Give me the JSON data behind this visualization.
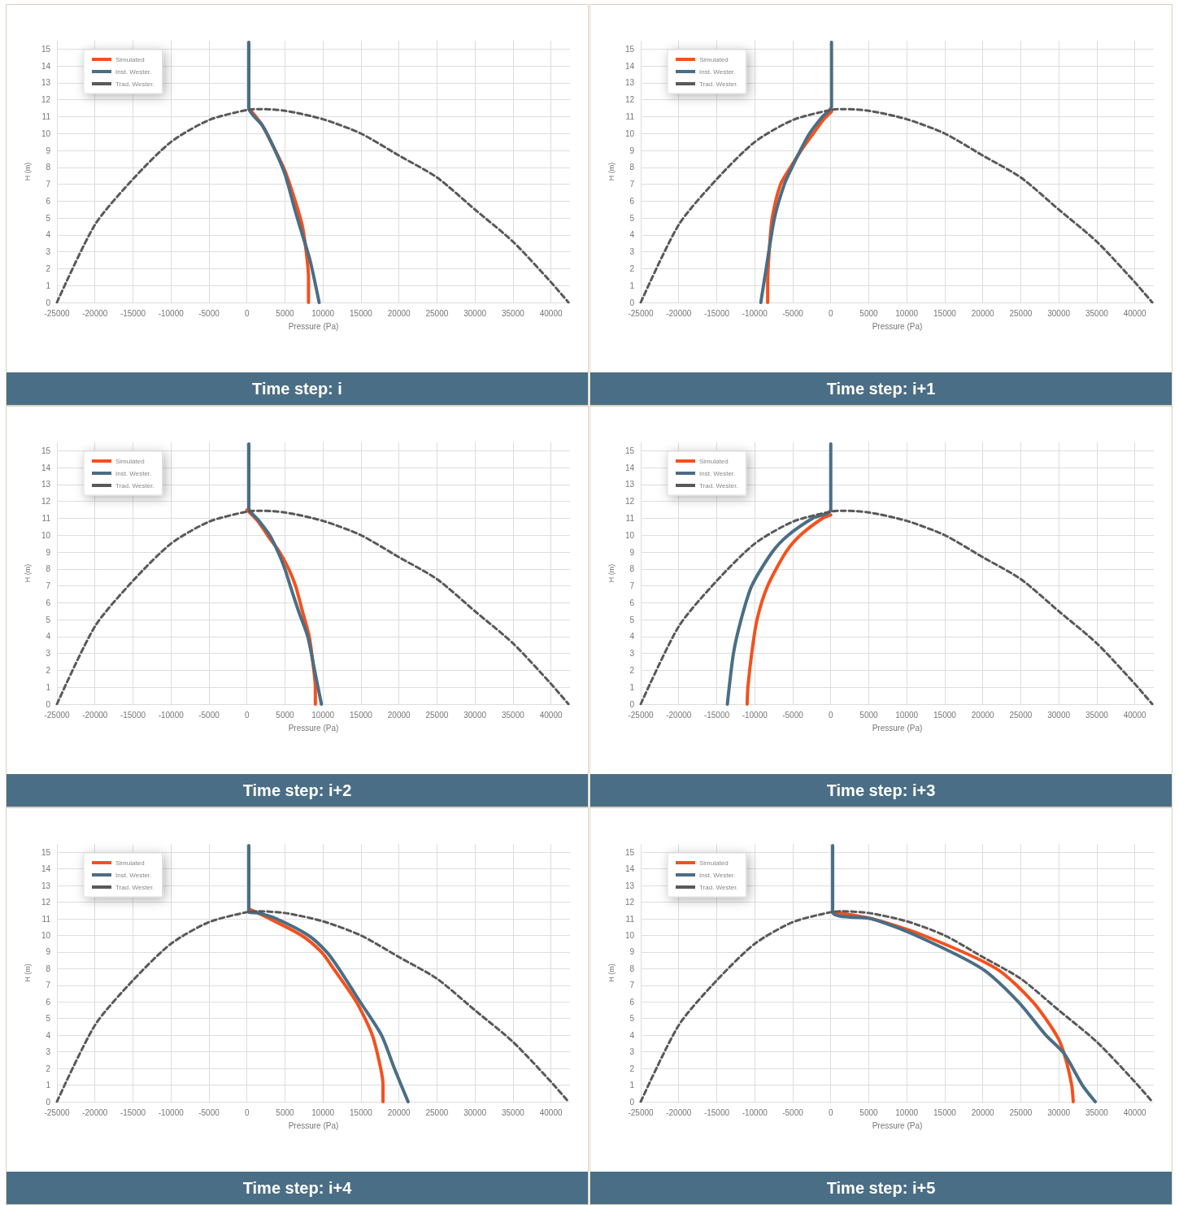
{
  "chart_data": [
    {
      "type": "line",
      "title": "Time step: i",
      "xlabel": "Pressure (Pa)",
      "ylabel": "H (m)",
      "xlim": [
        -25000,
        42500
      ],
      "ylim": [
        0,
        15.5
      ],
      "xticks": [
        -25000,
        -20000,
        -15000,
        -10000,
        -5000,
        0,
        5000,
        10000,
        15000,
        20000,
        25000,
        30000,
        35000,
        40000
      ],
      "yticks": [
        0,
        1,
        2,
        3,
        4,
        5,
        6,
        7,
        8,
        9,
        10,
        11,
        12,
        13,
        14,
        15
      ],
      "grid": true,
      "legend": "top left",
      "marker": "none",
      "line_style": "solid",
      "series": [
        {
          "name": "Simulated",
          "color": "#f4511e",
          "x": [
            250,
            2000,
            3500,
            5000,
            6500,
            7300,
            7800,
            8100,
            8100
          ],
          "values": [
            11.5,
            10.5,
            9.2,
            7.8,
            5.8,
            4.5,
            3,
            1.5,
            0
          ]
        },
        {
          "name": "Inst. Wester.",
          "color": "#4a6e85",
          "x": [
            250,
            250,
            2000,
            3500,
            5000,
            6300,
            7300,
            8300,
            9500
          ],
          "values": [
            15.4,
            11.5,
            10.5,
            9.2,
            7.6,
            5.5,
            4,
            2.5,
            0
          ]
        },
        {
          "name": "Trad. Wester.",
          "color": "#595959",
          "line_style": "dashed",
          "x": [
            -25000,
            -20000,
            -15000,
            -10000,
            -5000,
            0,
            1500,
            5000,
            10000,
            15000,
            20000,
            25000,
            30000,
            35000,
            40000,
            42300
          ],
          "values": [
            0,
            4.6,
            7.3,
            9.5,
            10.8,
            11.4,
            11.45,
            11.35,
            10.85,
            10,
            8.7,
            7.4,
            5.5,
            3.6,
            1.2,
            0
          ]
        }
      ]
    },
    {
      "type": "line",
      "title": "Time step: i+1",
      "xlabel": "Pressure (Pa)",
      "ylabel": "H (m)",
      "xlim": [
        -25000,
        42500
      ],
      "ylim": [
        0,
        15.5
      ],
      "xticks": [
        -25000,
        -20000,
        -15000,
        -10000,
        -5000,
        0,
        5000,
        10000,
        15000,
        20000,
        25000,
        30000,
        35000,
        40000
      ],
      "yticks": [
        0,
        1,
        2,
        3,
        4,
        5,
        6,
        7,
        8,
        9,
        10,
        11,
        12,
        13,
        14,
        15
      ],
      "grid": true,
      "legend": "top left",
      "marker": "none",
      "line_style": "solid",
      "series": [
        {
          "name": "Simulated",
          "color": "#f4511e",
          "x": [
            100,
            -1000,
            -2300,
            -3900,
            -5300,
            -6600,
            -7700,
            -8100,
            -8300,
            -8300
          ],
          "values": [
            11.3,
            10.8,
            10,
            9,
            8,
            7,
            5,
            3,
            1,
            0
          ]
        },
        {
          "name": "Inst. Wester.",
          "color": "#4a6e85",
          "x": [
            100,
            100,
            -1100,
            -2800,
            -4000,
            -5100,
            -6100,
            -7400,
            -8500,
            -9200
          ],
          "values": [
            15.4,
            11.6,
            11,
            10,
            9,
            8,
            7,
            5,
            2,
            0
          ]
        },
        {
          "name": "Trad. Wester.",
          "color": "#595959",
          "line_style": "dashed",
          "x": [
            -25000,
            -20000,
            -15000,
            -10000,
            -5000,
            0,
            1500,
            5000,
            10000,
            15000,
            20000,
            25000,
            30000,
            35000,
            40000,
            42300
          ],
          "values": [
            0,
            4.6,
            7.3,
            9.5,
            10.8,
            11.4,
            11.45,
            11.35,
            10.85,
            10,
            8.7,
            7.4,
            5.5,
            3.6,
            1.2,
            0
          ]
        }
      ]
    },
    {
      "type": "line",
      "title": "Time step: i+2",
      "xlabel": "Pressure (Pa)",
      "ylabel": "H (m)",
      "xlim": [
        -25000,
        42500
      ],
      "ylim": [
        0,
        15.5
      ],
      "xticks": [
        -25000,
        -20000,
        -15000,
        -10000,
        -5000,
        0,
        5000,
        10000,
        15000,
        20000,
        25000,
        30000,
        35000,
        40000
      ],
      "yticks": [
        0,
        1,
        2,
        3,
        4,
        5,
        6,
        7,
        8,
        9,
        10,
        11,
        12,
        13,
        14,
        15
      ],
      "grid": true,
      "legend": "top left",
      "marker": "none",
      "line_style": "solid",
      "series": [
        {
          "name": "Simulated",
          "color": "#f4511e",
          "x": [
            0,
            1500,
            2700,
            4300,
            5500,
            6400,
            7300,
            8200,
            8800,
            9000,
            9000
          ],
          "values": [
            11.5,
            10.8,
            10,
            9,
            8,
            7,
            5.5,
            4,
            2,
            1,
            0
          ]
        },
        {
          "name": "Inst. Wester.",
          "color": "#4a6e85",
          "x": [
            250,
            250,
            1500,
            3000,
            4100,
            5000,
            5700,
            6800,
            8000,
            8900,
            9800
          ],
          "values": [
            15.4,
            11.6,
            10.9,
            10,
            9,
            8,
            7,
            5.5,
            4,
            2,
            0
          ]
        },
        {
          "name": "Trad. Wester.",
          "color": "#595959",
          "line_style": "dashed",
          "x": [
            -25000,
            -20000,
            -15000,
            -10000,
            -5000,
            0,
            1500,
            5000,
            10000,
            15000,
            20000,
            25000,
            30000,
            35000,
            40000,
            42300
          ],
          "values": [
            0,
            4.6,
            7.3,
            9.5,
            10.8,
            11.4,
            11.45,
            11.35,
            10.85,
            10,
            8.7,
            7.4,
            5.5,
            3.6,
            1.2,
            0
          ]
        }
      ]
    },
    {
      "type": "line",
      "title": "Time step: i+3",
      "xlabel": "Pressure (Pa)",
      "ylabel": "H (m)",
      "xlim": [
        -25000,
        42500
      ],
      "ylim": [
        0,
        15.5
      ],
      "xticks": [
        -25000,
        -20000,
        -15000,
        -10000,
        -5000,
        0,
        5000,
        10000,
        15000,
        20000,
        25000,
        30000,
        35000,
        40000
      ],
      "yticks": [
        0,
        1,
        2,
        3,
        4,
        5,
        6,
        7,
        8,
        9,
        10,
        11,
        12,
        13,
        14,
        15
      ],
      "grid": true,
      "legend": "top left",
      "marker": "none",
      "line_style": "solid",
      "series": [
        {
          "name": "Simulated",
          "color": "#f4511e",
          "x": [
            0,
            -1100,
            -4000,
            -5900,
            -8300,
            -9700,
            -10400,
            -10900,
            -11000
          ],
          "values": [
            11.2,
            11,
            10,
            9,
            7,
            5,
            3,
            1,
            0
          ]
        },
        {
          "name": "Inst. Wester.",
          "color": "#4a6e85",
          "x": [
            0,
            0,
            -2400,
            -5600,
            -7700,
            -10400,
            -11800,
            -12800,
            -13600
          ],
          "values": [
            15.4,
            11.5,
            11,
            10,
            9,
            7,
            5,
            3,
            0
          ]
        },
        {
          "name": "Trad. Wester.",
          "color": "#595959",
          "line_style": "dashed",
          "x": [
            -25000,
            -20000,
            -15000,
            -10000,
            -5000,
            0,
            1500,
            5000,
            10000,
            15000,
            20000,
            25000,
            30000,
            35000,
            40000,
            42300
          ],
          "values": [
            0,
            4.6,
            7.3,
            9.5,
            10.8,
            11.4,
            11.45,
            11.35,
            10.85,
            10,
            8.7,
            7.4,
            5.5,
            3.6,
            1.2,
            0
          ]
        }
      ]
    },
    {
      "type": "line",
      "title": "Time step: i+4",
      "xlabel": "Pressure (Pa)",
      "ylabel": "H (m)",
      "xlim": [
        -25000,
        42500
      ],
      "ylim": [
        0,
        15.5
      ],
      "xticks": [
        -25000,
        -20000,
        -15000,
        -10000,
        -5000,
        0,
        5000,
        10000,
        15000,
        20000,
        25000,
        30000,
        35000,
        40000
      ],
      "yticks": [
        0,
        1,
        2,
        3,
        4,
        5,
        6,
        7,
        8,
        9,
        10,
        11,
        12,
        13,
        14,
        15
      ],
      "grid": true,
      "legend": "top left",
      "marker": "none",
      "line_style": "solid",
      "series": [
        {
          "name": "Simulated",
          "color": "#f4511e",
          "x": [
            250,
            3000,
            7200,
            9800,
            11400,
            14400,
            16500,
            17600,
            17900,
            17900
          ],
          "values": [
            11.6,
            11,
            10,
            9,
            8,
            6,
            4,
            2,
            1,
            0
          ]
        },
        {
          "name": "Inst. Wester.",
          "color": "#4a6e85",
          "x": [
            250,
            250,
            1500,
            3900,
            8100,
            10500,
            12100,
            14900,
            17700,
            19400,
            21200
          ],
          "values": [
            15.4,
            11.4,
            11.35,
            11,
            10,
            9,
            8,
            6,
            4,
            2,
            0
          ]
        },
        {
          "name": "Trad. Wester.",
          "color": "#595959",
          "line_style": "dashed",
          "x": [
            -25000,
            -20000,
            -15000,
            -10000,
            -5000,
            0,
            1500,
            5000,
            10000,
            15000,
            20000,
            25000,
            30000,
            35000,
            40000,
            42300
          ],
          "values": [
            0,
            4.6,
            7.3,
            9.5,
            10.8,
            11.4,
            11.45,
            11.35,
            10.85,
            10,
            8.7,
            7.4,
            5.5,
            3.6,
            1.2,
            0
          ]
        }
      ]
    },
    {
      "type": "line",
      "title": "Time step: i+5",
      "xlabel": "Pressure (Pa)",
      "ylabel": "H (m)",
      "xlim": [
        -25000,
        42500
      ],
      "ylim": [
        0,
        15.5
      ],
      "xticks": [
        -25000,
        -20000,
        -15000,
        -10000,
        -5000,
        0,
        5000,
        10000,
        15000,
        20000,
        25000,
        30000,
        35000,
        40000
      ],
      "yticks": [
        0,
        1,
        2,
        3,
        4,
        5,
        6,
        7,
        8,
        9,
        10,
        11,
        12,
        13,
        14,
        15
      ],
      "grid": true,
      "legend": "top left",
      "marker": "none",
      "line_style": "solid",
      "series": [
        {
          "name": "Simulated",
          "color": "#f4511e",
          "x": [
            250,
            5400,
            12200,
            21800,
            26600,
            29700,
            30700,
            31700,
            31900
          ],
          "values": [
            11.4,
            11,
            10,
            8,
            6,
            4,
            2.9,
            1,
            0
          ]
        },
        {
          "name": "Inst. Wester.",
          "color": "#4a6e85",
          "x": [
            250,
            250,
            5400,
            11200,
            19900,
            24700,
            28300,
            30700,
            33100,
            34800
          ],
          "values": [
            15.4,
            11.4,
            11,
            10,
            8,
            6,
            4,
            2.9,
            1,
            0
          ]
        },
        {
          "name": "Trad. Wester.",
          "color": "#595959",
          "line_style": "dashed",
          "x": [
            -25000,
            -20000,
            -15000,
            -10000,
            -5000,
            0,
            1500,
            5000,
            10000,
            15000,
            20000,
            25000,
            30000,
            35000,
            40000,
            42300
          ],
          "values": [
            0,
            4.6,
            7.3,
            9.5,
            10.8,
            11.4,
            11.45,
            11.35,
            10.85,
            10,
            8.7,
            7.4,
            5.5,
            3.6,
            1.2,
            0
          ]
        }
      ]
    }
  ]
}
